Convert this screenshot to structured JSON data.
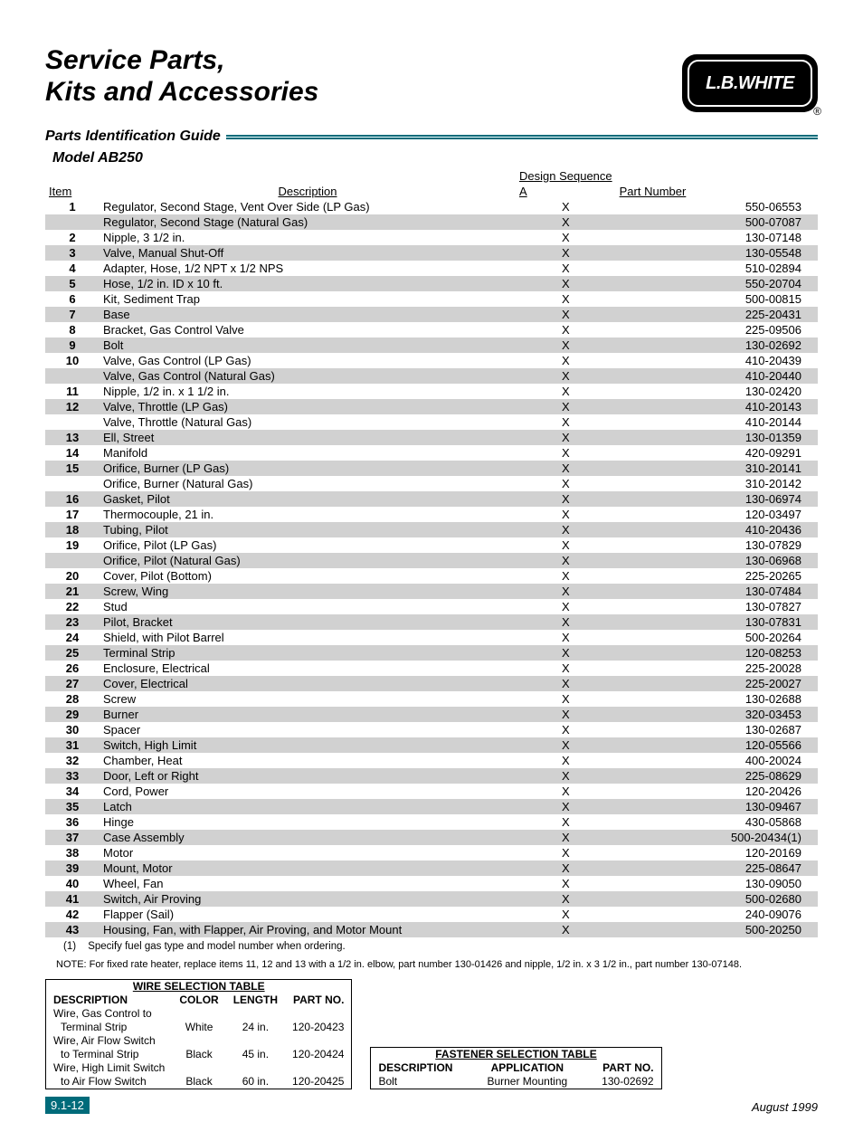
{
  "header": {
    "title_line1": "Service Parts,",
    "title_line2": "Kits and Accessories",
    "logo_text": "L.B.WHITE",
    "logo_reg": "®"
  },
  "section_title": "Parts Identification Guide",
  "model": "Model AB250",
  "parts_table": {
    "design_sequence_label": "Design Sequence",
    "headers": {
      "item": "Item",
      "description": "Description",
      "seq": "A",
      "part": "Part Number"
    },
    "rows": [
      {
        "item": "1",
        "desc": "Regulator, Second Stage, Vent Over Side (LP Gas)",
        "seq": "X",
        "part": "550-06553",
        "shade": false
      },
      {
        "item": "",
        "desc": "Regulator, Second Stage (Natural Gas)",
        "seq": "X",
        "part": "500-07087",
        "shade": true
      },
      {
        "item": "2",
        "desc": "Nipple, 3 1/2 in.",
        "seq": "X",
        "part": "130-07148",
        "shade": false
      },
      {
        "item": "3",
        "desc": "Valve, Manual Shut-Off",
        "seq": "X",
        "part": "130-05548",
        "shade": true
      },
      {
        "item": "4",
        "desc": "Adapter, Hose, 1/2 NPT x 1/2 NPS",
        "seq": "X",
        "part": "510-02894",
        "shade": false
      },
      {
        "item": "5",
        "desc": "Hose, 1/2 in. ID x 10 ft.",
        "seq": "X",
        "part": "550-20704",
        "shade": true
      },
      {
        "item": "6",
        "desc": "Kit, Sediment Trap",
        "seq": "X",
        "part": "500-00815",
        "shade": false
      },
      {
        "item": "7",
        "desc": "Base",
        "seq": "X",
        "part": "225-20431",
        "shade": true
      },
      {
        "item": "8",
        "desc": "Bracket, Gas Control Valve",
        "seq": "X",
        "part": "225-09506",
        "shade": false
      },
      {
        "item": "9",
        "desc": "Bolt",
        "seq": "X",
        "part": "130-02692",
        "shade": true
      },
      {
        "item": "10",
        "desc": "Valve, Gas Control (LP Gas)",
        "seq": "X",
        "part": "410-20439",
        "shade": false
      },
      {
        "item": "",
        "desc": "Valve, Gas Control (Natural Gas)",
        "seq": "X",
        "part": "410-20440",
        "shade": true
      },
      {
        "item": "11",
        "desc": "Nipple, 1/2 in. x 1 1/2 in.",
        "seq": "X",
        "part": "130-02420",
        "shade": false
      },
      {
        "item": "12",
        "desc": "Valve, Throttle (LP Gas)",
        "seq": "X",
        "part": "410-20143",
        "shade": true
      },
      {
        "item": "",
        "desc": "Valve, Throttle (Natural Gas)",
        "seq": "X",
        "part": "410-20144",
        "shade": false
      },
      {
        "item": "13",
        "desc": "Ell, Street",
        "seq": "X",
        "part": "130-01359",
        "shade": true
      },
      {
        "item": "14",
        "desc": "Manifold",
        "seq": "X",
        "part": "420-09291",
        "shade": false
      },
      {
        "item": "15",
        "desc": "Orifice, Burner (LP Gas)",
        "seq": "X",
        "part": "310-20141",
        "shade": true
      },
      {
        "item": "",
        "desc": "Orifice, Burner (Natural Gas)",
        "seq": "X",
        "part": "310-20142",
        "shade": false
      },
      {
        "item": "16",
        "desc": "Gasket, Pilot",
        "seq": "X",
        "part": "130-06974",
        "shade": true
      },
      {
        "item": "17",
        "desc": "Thermocouple, 21 in.",
        "seq": "X",
        "part": "120-03497",
        "shade": false
      },
      {
        "item": "18",
        "desc": "Tubing, Pilot",
        "seq": "X",
        "part": "410-20436",
        "shade": true
      },
      {
        "item": "19",
        "desc": "Orifice, Pilot (LP Gas)",
        "seq": "X",
        "part": "130-07829",
        "shade": false
      },
      {
        "item": "",
        "desc": "Orifice, Pilot (Natural Gas)",
        "seq": "X",
        "part": "130-06968",
        "shade": true
      },
      {
        "item": "20",
        "desc": "Cover, Pilot (Bottom)",
        "seq": "X",
        "part": "225-20265",
        "shade": false
      },
      {
        "item": "21",
        "desc": "Screw, Wing",
        "seq": "X",
        "part": "130-07484",
        "shade": true
      },
      {
        "item": "22",
        "desc": "Stud",
        "seq": "X",
        "part": "130-07827",
        "shade": false
      },
      {
        "item": "23",
        "desc": "Pilot, Bracket",
        "seq": "X",
        "part": "130-07831",
        "shade": true
      },
      {
        "item": "24",
        "desc": "Shield, with Pilot Barrel",
        "seq": "X",
        "part": "500-20264",
        "shade": false
      },
      {
        "item": "25",
        "desc": "Terminal Strip",
        "seq": "X",
        "part": "120-08253",
        "shade": true
      },
      {
        "item": "26",
        "desc": "Enclosure, Electrical",
        "seq": "X",
        "part": "225-20028",
        "shade": false
      },
      {
        "item": "27",
        "desc": "Cover, Electrical",
        "seq": "X",
        "part": "225-20027",
        "shade": true
      },
      {
        "item": "28",
        "desc": "Screw",
        "seq": "X",
        "part": "130-02688",
        "shade": false
      },
      {
        "item": "29",
        "desc": "Burner",
        "seq": "X",
        "part": "320-03453",
        "shade": true
      },
      {
        "item": "30",
        "desc": "Spacer",
        "seq": "X",
        "part": "130-02687",
        "shade": false
      },
      {
        "item": "31",
        "desc": "Switch, High Limit",
        "seq": "X",
        "part": "120-05566",
        "shade": true
      },
      {
        "item": "32",
        "desc": "Chamber, Heat",
        "seq": "X",
        "part": "400-20024",
        "shade": false
      },
      {
        "item": "33",
        "desc": "Door, Left or Right",
        "seq": "X",
        "part": "225-08629",
        "shade": true
      },
      {
        "item": "34",
        "desc": "Cord, Power",
        "seq": "X",
        "part": "120-20426",
        "shade": false
      },
      {
        "item": "35",
        "desc": "Latch",
        "seq": "X",
        "part": "130-09467",
        "shade": true
      },
      {
        "item": "36",
        "desc": "Hinge",
        "seq": "X",
        "part": "430-05868",
        "shade": false
      },
      {
        "item": "37",
        "desc": "Case Assembly",
        "seq": "X",
        "part": "500-20434(1)",
        "shade": true
      },
      {
        "item": "38",
        "desc": "Motor",
        "seq": "X",
        "part": "120-20169",
        "shade": false
      },
      {
        "item": "39",
        "desc": "Mount, Motor",
        "seq": "X",
        "part": "225-08647",
        "shade": true
      },
      {
        "item": "40",
        "desc": "Wheel, Fan",
        "seq": "X",
        "part": "130-09050",
        "shade": false
      },
      {
        "item": "41",
        "desc": "Switch, Air Proving",
        "seq": "X",
        "part": "500-02680",
        "shade": true
      },
      {
        "item": "42",
        "desc": "Flapper (Sail)",
        "seq": "X",
        "part": "240-09076",
        "shade": false
      },
      {
        "item": "43",
        "desc": "Housing, Fan, with Flapper, Air Proving, and Motor Mount",
        "seq": "X",
        "part": "500-20250",
        "shade": true
      }
    ]
  },
  "footnote": {
    "num": "(1)",
    "text": "Specify fuel gas type and model number when ordering."
  },
  "note": "NOTE:  For fixed rate heater, replace items 11, 12 and 13 with a 1/2 in. elbow, part number 130-01426 and nipple, 1/2 in. x 3 1/2 in., part number 130-07148.",
  "wire_table": {
    "title": "WIRE SELECTION TABLE",
    "headers": {
      "desc": "DESCRIPTION",
      "color": "COLOR",
      "length": "LENGTH",
      "part": "PART NO."
    },
    "rows": [
      {
        "desc1": "Wire, Gas Control to",
        "desc2": "Terminal Strip",
        "color": "White",
        "length": "24 in.",
        "part": "120-20423"
      },
      {
        "desc1": "Wire, Air Flow Switch",
        "desc2": "to Terminal Strip",
        "color": "Black",
        "length": "45 in.",
        "part": "120-20424"
      },
      {
        "desc1": "Wire, High Limit Switch",
        "desc2": "to Air Flow Switch",
        "color": "Black",
        "length": "60 in.",
        "part": "120-20425"
      }
    ]
  },
  "fastener_table": {
    "title": "FASTENER SELECTION TABLE",
    "headers": {
      "desc": "DESCRIPTION",
      "app": "APPLICATION",
      "part": "PART NO."
    },
    "rows": [
      {
        "desc": "Bolt",
        "app": "Burner Mounting",
        "part": "130-02692"
      }
    ]
  },
  "footer": {
    "page": "9.1-12",
    "date": "August 1999"
  }
}
